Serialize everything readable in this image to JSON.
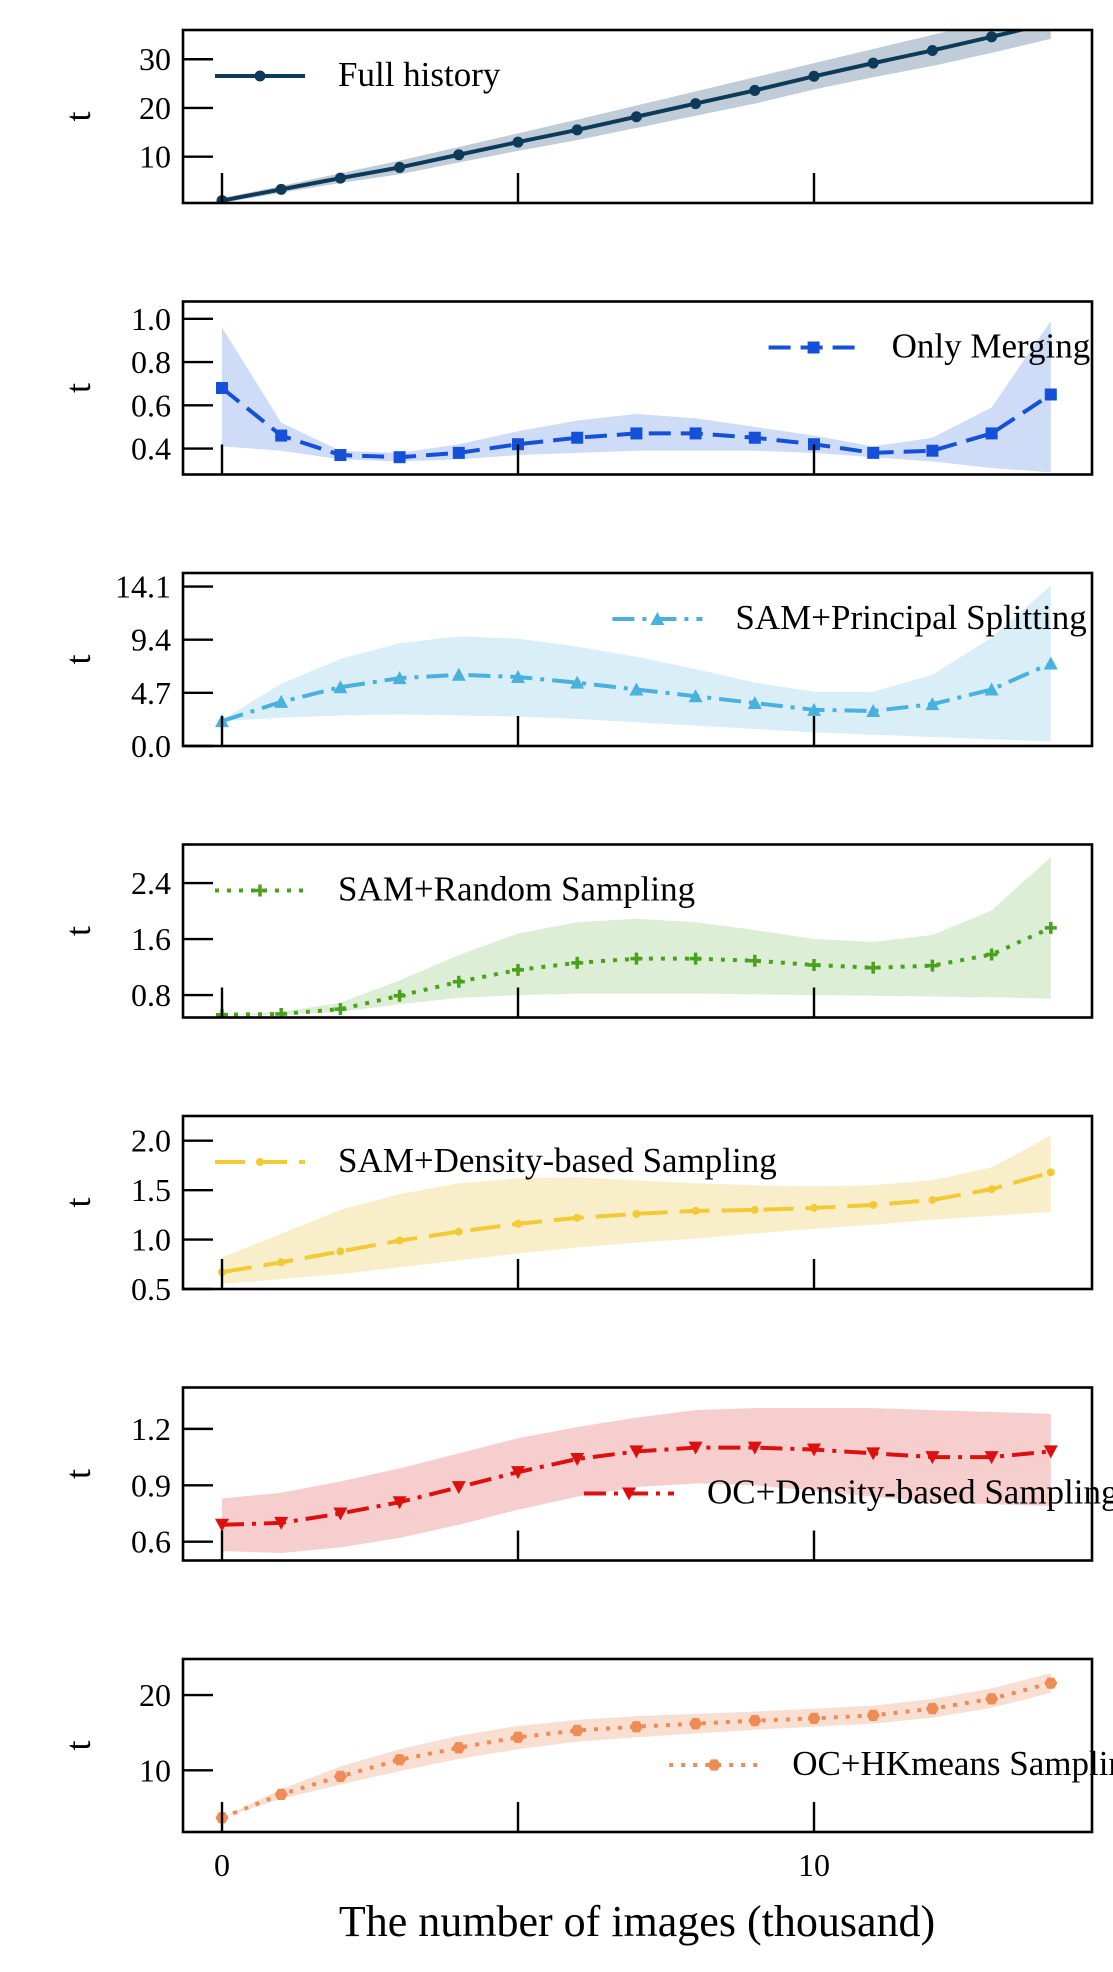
{
  "figure": {
    "xlabel": "The number of images (thousand)",
    "x_ticks": [
      0,
      10
    ]
  },
  "chart_data": [
    {
      "type": "line",
      "ylabel": "t",
      "x": [
        0,
        1,
        2,
        3,
        4,
        5,
        6,
        7,
        8,
        9,
        10,
        11,
        12,
        13,
        14
      ],
      "xlim": [
        -1.4,
        29.5
      ],
      "ylim": [
        0.5,
        36
      ],
      "y_ticks": [
        {
          "value": 10,
          "label": "10"
        },
        {
          "value": 20,
          "label": "20"
        },
        {
          "value": 30,
          "label": "30"
        }
      ],
      "legend_position": "top-left",
      "series": [
        {
          "name": "Full history",
          "color": "#0e3a5a",
          "band_color": "#b9c6d3",
          "marker": "circle",
          "dash": "solid",
          "values": [
            1,
            3.3,
            5.6,
            7.8,
            10.4,
            13,
            15.5,
            18.2,
            20.9,
            23.6,
            26.5,
            29.2,
            31.8,
            34.6,
            37.5
          ],
          "band_upper": [
            1.5,
            4,
            6.6,
            9.2,
            12,
            14.8,
            17.6,
            20.5,
            23.4,
            26.3,
            29.2,
            32.1,
            35,
            37.9,
            40.8
          ],
          "band_lower": [
            0.5,
            2.6,
            4.6,
            6.4,
            8.8,
            11.2,
            13.4,
            15.9,
            18.4,
            20.9,
            23.8,
            26.3,
            28.6,
            31.3,
            34.2
          ]
        }
      ]
    },
    {
      "type": "line",
      "ylabel": "t",
      "x": [
        0,
        1,
        2,
        3,
        4,
        5,
        6,
        7,
        8,
        9,
        10,
        11,
        12,
        13,
        14
      ],
      "xlim": [
        -1.4,
        29.5
      ],
      "ylim": [
        0.28,
        1.08
      ],
      "y_ticks": [
        {
          "value": 0.4,
          "label": "0.4"
        },
        {
          "value": 0.6,
          "label": "0.6"
        },
        {
          "value": 0.8,
          "label": "0.8"
        },
        {
          "value": 1.0,
          "label": "1.0"
        }
      ],
      "legend_position": "top-right",
      "series": [
        {
          "name": "Only Merging",
          "color": "#1450d8",
          "band_color": "#c9d8f6",
          "marker": "square",
          "dash": "dashed",
          "values": [
            0.68,
            0.46,
            0.37,
            0.36,
            0.38,
            0.42,
            0.45,
            0.47,
            0.47,
            0.45,
            0.42,
            0.38,
            0.39,
            0.47,
            0.65
          ],
          "band_upper": [
            0.96,
            0.52,
            0.39,
            0.38,
            0.42,
            0.48,
            0.53,
            0.56,
            0.54,
            0.5,
            0.46,
            0.41,
            0.45,
            0.59,
            0.99
          ],
          "band_lower": [
            0.41,
            0.39,
            0.35,
            0.34,
            0.35,
            0.37,
            0.38,
            0.39,
            0.39,
            0.39,
            0.38,
            0.36,
            0.34,
            0.31,
            0.29
          ]
        }
      ]
    },
    {
      "type": "line",
      "ylabel": "t",
      "x": [
        0,
        1,
        2,
        3,
        4,
        5,
        6,
        7,
        8,
        9,
        10,
        11,
        12,
        13,
        14
      ],
      "xlim": [
        -1.4,
        29.5
      ],
      "ylim": [
        0,
        15.3
      ],
      "y_ticks": [
        {
          "value": 0.0,
          "label": "0.0"
        },
        {
          "value": 4.7,
          "label": "4.7"
        },
        {
          "value": 9.4,
          "label": "9.4"
        },
        {
          "value": 14.1,
          "label": "14.1"
        }
      ],
      "legend_position": "top-right",
      "series": [
        {
          "name": "SAM+Principal Splitting",
          "color": "#49b1dc",
          "band_color": "#d6ecf7",
          "marker": "triangle-up",
          "dash": "dashdot",
          "values": [
            2.2,
            3.9,
            5.2,
            6,
            6.3,
            6.1,
            5.6,
            5,
            4.4,
            3.8,
            3.2,
            3.1,
            3.7,
            5,
            7.3
          ],
          "band_upper": [
            2.3,
            5.5,
            7.7,
            9.1,
            9.7,
            9.5,
            8.8,
            7.9,
            6.8,
            5.6,
            4.8,
            4.8,
            6.3,
            9.6,
            14.2
          ],
          "band_lower": [
            2.2,
            2.5,
            2.7,
            2.8,
            2.7,
            2.6,
            2.4,
            2.1,
            1.8,
            1.5,
            1.2,
            1.0,
            0.8,
            0.6,
            0.4
          ]
        }
      ]
    },
    {
      "type": "line",
      "ylabel": "t",
      "x": [
        0,
        1,
        2,
        3,
        4,
        5,
        6,
        7,
        8,
        9,
        10,
        11,
        12,
        13,
        14
      ],
      "xlim": [
        -1.4,
        29.5
      ],
      "ylim": [
        0.48,
        2.95
      ],
      "y_ticks": [
        {
          "value": 0.8,
          "label": "0.8"
        },
        {
          "value": 1.6,
          "label": "1.6"
        },
        {
          "value": 2.4,
          "label": "2.4"
        }
      ],
      "legend_position": "top-left",
      "series": [
        {
          "name": "SAM+Random Sampling",
          "color": "#4aa11c",
          "band_color": "#d8ecd0",
          "marker": "plus",
          "dash": "dotted",
          "values": [
            0.52,
            0.53,
            0.6,
            0.79,
            0.99,
            1.16,
            1.26,
            1.32,
            1.32,
            1.29,
            1.23,
            1.19,
            1.22,
            1.38,
            1.76
          ],
          "band_upper": [
            0.52,
            0.56,
            0.69,
            1.01,
            1.37,
            1.68,
            1.84,
            1.89,
            1.84,
            1.73,
            1.6,
            1.56,
            1.66,
            2.01,
            2.77
          ],
          "band_lower": [
            0.52,
            0.52,
            0.56,
            0.67,
            0.76,
            0.8,
            0.82,
            0.82,
            0.82,
            0.81,
            0.8,
            0.79,
            0.78,
            0.77,
            0.75
          ]
        }
      ]
    },
    {
      "type": "line",
      "ylabel": "t",
      "x": [
        0,
        1,
        2,
        3,
        4,
        5,
        6,
        7,
        8,
        9,
        10,
        11,
        12,
        13,
        14
      ],
      "xlim": [
        -1.4,
        29.5
      ],
      "ylim": [
        0.5,
        2.25
      ],
      "y_ticks": [
        {
          "value": 0.5,
          "label": "0.5"
        },
        {
          "value": 1.0,
          "label": "1.0"
        },
        {
          "value": 1.5,
          "label": "1.5"
        },
        {
          "value": 2.0,
          "label": "2.0"
        }
      ],
      "legend_position": "top-left",
      "series": [
        {
          "name": "SAM+Density-based Sampling",
          "color": "#f2ca35",
          "band_color": "#f8ecc4",
          "marker": "circle-small",
          "dash": "longdash",
          "values": [
            0.67,
            0.77,
            0.88,
            0.99,
            1.08,
            1.16,
            1.22,
            1.26,
            1.29,
            1.3,
            1.32,
            1.35,
            1.4,
            1.51,
            1.68
          ],
          "band_upper": [
            0.82,
            1.06,
            1.3,
            1.46,
            1.57,
            1.62,
            1.63,
            1.6,
            1.57,
            1.55,
            1.54,
            1.55,
            1.6,
            1.73,
            2.05
          ],
          "band_lower": [
            0.55,
            0.6,
            0.65,
            0.72,
            0.79,
            0.86,
            0.92,
            0.97,
            1.01,
            1.06,
            1.11,
            1.15,
            1.2,
            1.24,
            1.28
          ]
        }
      ]
    },
    {
      "type": "line",
      "ylabel": "t",
      "x": [
        0,
        1,
        2,
        3,
        4,
        5,
        6,
        7,
        8,
        9,
        10,
        11,
        12,
        13,
        14
      ],
      "xlim": [
        -1.4,
        29.5
      ],
      "ylim": [
        0.5,
        1.42
      ],
      "y_ticks": [
        {
          "value": 0.6,
          "label": "0.6"
        },
        {
          "value": 0.9,
          "label": "0.9"
        },
        {
          "value": 1.2,
          "label": "1.2"
        }
      ],
      "legend_position": "bottom-right",
      "series": [
        {
          "name": "OC+Density-based Sampling",
          "color": "#dd1010",
          "band_color": "#f5c9c9",
          "marker": "triangle-down",
          "dash": "dashdot",
          "values": [
            0.69,
            0.7,
            0.75,
            0.81,
            0.89,
            0.97,
            1.04,
            1.08,
            1.1,
            1.1,
            1.09,
            1.07,
            1.05,
            1.05,
            1.08
          ],
          "band_upper": [
            0.83,
            0.86,
            0.92,
            0.99,
            1.07,
            1.15,
            1.21,
            1.26,
            1.3,
            1.31,
            1.31,
            1.31,
            1.3,
            1.29,
            1.28
          ],
          "band_lower": [
            0.55,
            0.54,
            0.57,
            0.62,
            0.69,
            0.77,
            0.84,
            0.89,
            0.91,
            0.9,
            0.87,
            0.84,
            0.81,
            0.8,
            0.79
          ]
        }
      ]
    },
    {
      "type": "line",
      "ylabel": "t",
      "x": [
        0,
        1,
        2,
        3,
        4,
        5,
        6,
        7,
        8,
        9,
        10,
        11,
        12,
        13,
        14
      ],
      "xlim": [
        -1.4,
        29.5
      ],
      "ylim": [
        1.8,
        24.8
      ],
      "y_ticks": [
        {
          "value": 10,
          "label": "10"
        },
        {
          "value": 20,
          "label": "20"
        }
      ],
      "legend_position": "bottom-right",
      "series": [
        {
          "name": "OC+HKmeans Sampling",
          "color": "#ee8c56",
          "band_color": "#f8dccd",
          "marker": "hexagon",
          "dash": "dotted",
          "values": [
            3.7,
            6.8,
            9.2,
            11.4,
            13,
            14.4,
            15.3,
            15.8,
            16.2,
            16.6,
            16.9,
            17.3,
            18.2,
            19.5,
            21.6
          ],
          "band_upper": [
            3.7,
            7.5,
            10.5,
            12.8,
            14.6,
            15.9,
            16.7,
            17.2,
            17.5,
            17.8,
            18.2,
            18.6,
            19.5,
            20.9,
            22.9
          ],
          "band_lower": [
            3.7,
            6.2,
            8.1,
            9.9,
            11.5,
            12.8,
            13.8,
            14.4,
            14.9,
            15.4,
            15.8,
            16.2,
            17,
            18.3,
            20.3
          ]
        }
      ]
    }
  ]
}
